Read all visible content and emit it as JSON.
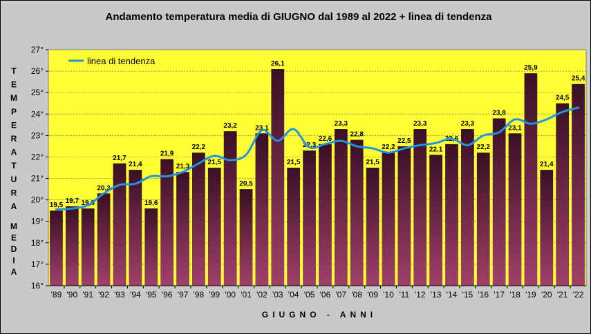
{
  "chart_data": {
    "type": "bar",
    "title": "Andamento temperatura media di GIUGNO dal 1989 al 2022 + linea di tendenza",
    "xlabel": "GIUGNO - ANNI",
    "ylabel_top": "TEMPERATURA",
    "ylabel_bottom": "MEDIA",
    "ylim": [
      16,
      27
    ],
    "yticks": [
      "16°",
      "17°",
      "18°",
      "19°",
      "20°",
      "21°",
      "22°",
      "23°",
      "24°",
      "25°",
      "26°",
      "27°"
    ],
    "categories": [
      "'89",
      "'90",
      "'91",
      "'92",
      "'93",
      "'94",
      "'95",
      "'96",
      "'97",
      "'98",
      "'99",
      "'00",
      "'01",
      "'02",
      "'03",
      "'04",
      "'05",
      "'06",
      "'07",
      "'08",
      "'09",
      "'10",
      "'11",
      "'12",
      "'13",
      "'14",
      "'15",
      "'16",
      "'17",
      "'18",
      "'19",
      "'20",
      "'21",
      "'22"
    ],
    "values": [
      19.5,
      19.7,
      19.6,
      20.3,
      21.7,
      21.4,
      19.6,
      21.9,
      21.3,
      22.2,
      21.5,
      23.2,
      20.5,
      23.1,
      26.1,
      21.5,
      22.3,
      22.6,
      23.3,
      22.8,
      21.5,
      22.2,
      22.5,
      23.3,
      22.1,
      22.6,
      23.3,
      22.2,
      23.8,
      23.1,
      25.9,
      21.4,
      24.5,
      25.4
    ],
    "value_labels": [
      "19,5",
      "19,7",
      "19,6",
      "20,3",
      "21,7",
      "21,4",
      "19,6",
      "21,9",
      "21,3",
      "22,2",
      "21,5",
      "23,2",
      "20,5",
      "23,1",
      "26,1",
      "21,5",
      "22,3",
      "22,6",
      "23,3",
      "22,8",
      "21,5",
      "22,2",
      "22,5",
      "23,3",
      "22,1",
      "22,6",
      "23,3",
      "22,2",
      "23,8",
      "23,1",
      "25,9",
      "21,4",
      "24,5",
      "25,4"
    ],
    "trend": {
      "name": "linea di tendenza",
      "values": [
        19.55,
        19.6,
        19.75,
        20.3,
        20.7,
        20.75,
        21.1,
        21.1,
        21.3,
        21.7,
        22.05,
        21.85,
        22.1,
        23.25,
        22.75,
        23.3,
        22.45,
        22.6,
        22.75,
        22.5,
        22.4,
        22.2,
        22.4,
        22.55,
        22.65,
        22.85,
        22.55,
        23.0,
        23.15,
        23.75,
        23.55,
        23.75,
        24.1,
        24.3
      ]
    },
    "legend_position": "top-left",
    "grid": true,
    "colors": {
      "plot_background": "#ffff33",
      "chart_background": "#c9c9c9",
      "bar_top": "#3a1025",
      "bar_bottom": "#a0406a",
      "trend_line": "#2196e0"
    }
  }
}
